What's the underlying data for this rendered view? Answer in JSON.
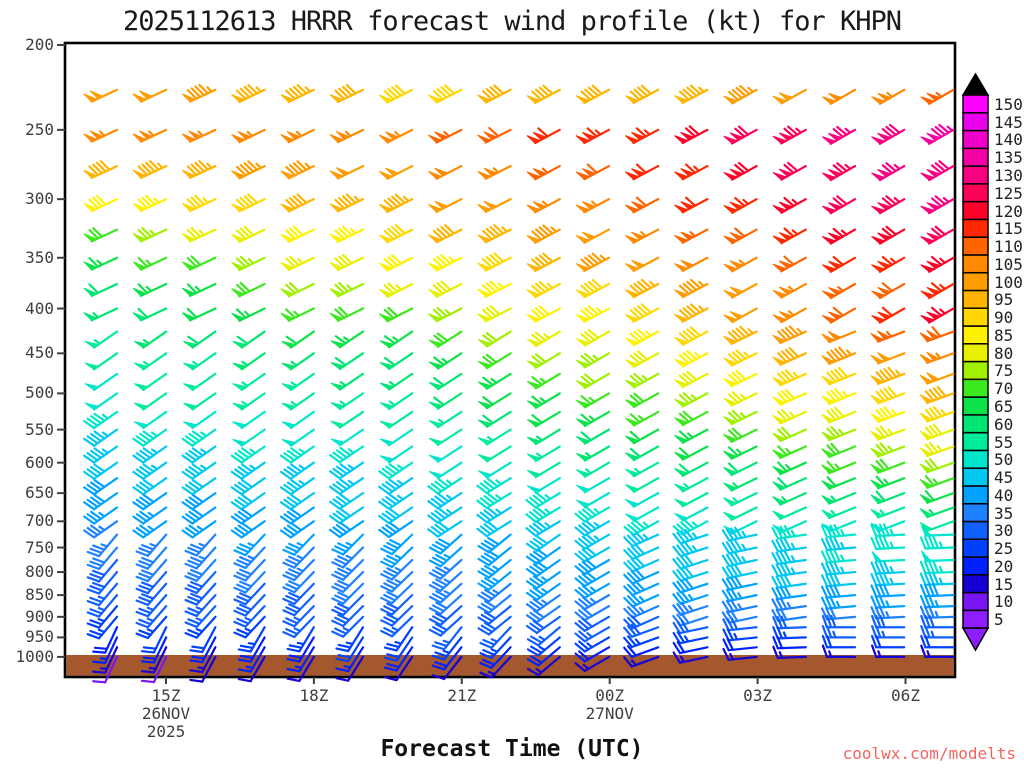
{
  "page": {
    "title": "2025112613 HRRR forecast wind profile (kt) for KHPN",
    "xlabel": "Forecast Time (UTC)",
    "watermark": "coolwx.com/modelts"
  },
  "chart_data": {
    "type": "wind-barb-profile",
    "title": "2025112613 HRRR forecast wind profile (kt) for KHPN",
    "xlabel": "Forecast Time (UTC)",
    "ylabel_units": "hPa",
    "units": "kt",
    "station": "KHPN",
    "model": "HRRR",
    "run": "2025112613",
    "y_axis_ticks": [
      200,
      250,
      300,
      350,
      400,
      450,
      500,
      550,
      600,
      650,
      700,
      750,
      800,
      850,
      900,
      950,
      1000
    ],
    "x_axis_ticks": [
      {
        "label": "15Z",
        "sub": [
          "26NOV",
          "2025"
        ]
      },
      {
        "label": "18Z",
        "sub": []
      },
      {
        "label": "21Z",
        "sub": []
      },
      {
        "label": "00Z",
        "sub": [
          "27NOV"
        ]
      },
      {
        "label": "03Z",
        "sub": []
      },
      {
        "label": "06Z",
        "sub": []
      }
    ],
    "times_utc": [
      "14Z",
      "15Z",
      "16Z",
      "17Z",
      "18Z",
      "19Z",
      "20Z",
      "21Z",
      "22Z",
      "23Z",
      "00Z",
      "01Z",
      "02Z",
      "03Z",
      "04Z",
      "05Z",
      "06Z",
      "07Z"
    ],
    "levels_hpa": [
      225,
      250,
      275,
      300,
      325,
      350,
      375,
      400,
      425,
      450,
      475,
      500,
      525,
      550,
      575,
      600,
      625,
      650,
      675,
      700,
      725,
      750,
      775,
      800,
      825,
      850,
      875,
      900,
      925,
      950,
      975,
      1000
    ],
    "speeds_kt": [
      [
        100,
        98,
        97,
        95,
        93,
        92,
        90,
        90,
        91,
        91,
        92,
        92,
        95,
        97,
        100,
        102,
        105,
        107
      ],
      [
        105,
        105,
        105,
        105,
        105,
        105,
        105,
        107,
        109,
        111,
        113,
        115,
        118,
        121,
        124,
        127,
        130,
        133
      ],
      [
        92,
        93,
        95,
        96,
        97,
        99,
        100,
        102,
        105,
        107,
        110,
        112,
        115,
        118,
        121,
        124,
        127,
        130
      ],
      [
        82,
        84,
        86,
        89,
        91,
        93,
        95,
        98,
        100,
        103,
        105,
        108,
        111,
        114,
        117,
        121,
        124,
        127
      ],
      [
        70,
        73,
        76,
        79,
        82,
        85,
        88,
        91,
        94,
        97,
        100,
        103,
        106,
        109,
        113,
        116,
        119,
        122
      ],
      [
        63,
        66,
        69,
        73,
        76,
        79,
        82,
        85,
        89,
        92,
        96,
        99,
        102,
        105,
        108,
        111,
        114,
        117
      ],
      [
        60,
        63,
        65,
        68,
        71,
        73,
        76,
        80,
        83,
        87,
        90,
        94,
        97,
        100,
        104,
        107,
        110,
        113
      ],
      [
        57,
        59,
        61,
        64,
        66,
        68,
        70,
        74,
        78,
        81,
        85,
        89,
        94,
        98,
        103,
        108,
        112,
        117
      ],
      [
        55,
        57,
        58,
        60,
        61,
        63,
        64,
        68,
        72,
        76,
        80,
        84,
        88,
        93,
        97,
        101,
        106,
        110
      ],
      [
        52,
        53,
        55,
        56,
        57,
        59,
        60,
        64,
        68,
        71,
        75,
        79,
        83,
        87,
        92,
        96,
        100,
        104
      ],
      [
        50,
        51,
        52,
        54,
        55,
        56,
        57,
        60,
        64,
        67,
        71,
        74,
        78,
        82,
        86,
        90,
        94,
        98
      ],
      [
        50,
        51,
        52,
        53,
        53,
        54,
        55,
        58,
        61,
        64,
        67,
        70,
        74,
        77,
        81,
        85,
        88,
        92
      ],
      [
        47,
        48,
        49,
        50,
        50,
        51,
        52,
        55,
        58,
        61,
        63,
        66,
        69,
        73,
        76,
        79,
        83,
        86
      ],
      [
        45,
        46,
        47,
        48,
        48,
        49,
        50,
        52,
        55,
        57,
        60,
        62,
        65,
        68,
        71,
        74,
        77,
        80
      ],
      [
        44,
        45,
        45,
        46,
        47,
        47,
        48,
        50,
        52,
        54,
        56,
        58,
        61,
        64,
        67,
        70,
        73,
        76
      ],
      [
        42,
        43,
        43,
        44,
        45,
        45,
        46,
        48,
        50,
        51,
        53,
        55,
        58,
        60,
        63,
        66,
        68,
        71
      ],
      [
        40,
        41,
        41,
        42,
        43,
        43,
        44,
        46,
        47,
        49,
        50,
        52,
        54,
        57,
        59,
        61,
        64,
        66
      ],
      [
        38,
        39,
        40,
        41,
        41,
        42,
        43,
        44,
        46,
        47,
        49,
        50,
        52,
        54,
        56,
        57,
        59,
        61
      ],
      [
        36,
        37,
        38,
        39,
        40,
        41,
        42,
        43,
        44,
        46,
        47,
        48,
        49,
        51,
        52,
        53,
        55,
        56
      ],
      [
        35,
        36,
        37,
        38,
        38,
        39,
        40,
        41,
        42,
        44,
        45,
        46,
        47,
        48,
        48,
        49,
        50,
        51
      ],
      [
        33,
        34,
        35,
        36,
        36,
        37,
        38,
        39,
        40,
        42,
        43,
        44,
        45,
        45,
        46,
        47,
        47,
        48
      ],
      [
        31,
        32,
        33,
        34,
        34,
        35,
        36,
        37,
        38,
        40,
        41,
        42,
        43,
        44,
        44,
        45,
        46,
        47
      ],
      [
        30,
        31,
        31,
        32,
        33,
        33,
        34,
        35,
        37,
        38,
        40,
        41,
        42,
        44,
        45,
        46,
        48,
        49
      ],
      [
        29,
        30,
        30,
        31,
        32,
        32,
        33,
        34,
        36,
        37,
        39,
        40,
        41,
        42,
        43,
        44,
        45,
        46
      ],
      [
        27,
        28,
        29,
        30,
        30,
        31,
        32,
        33,
        34,
        36,
        37,
        38,
        39,
        40,
        41,
        42,
        43,
        44
      ],
      [
        26,
        27,
        27,
        28,
        29,
        29,
        30,
        31,
        32,
        34,
        35,
        36,
        37,
        37,
        38,
        39,
        39,
        40
      ],
      [
        25,
        26,
        26,
        27,
        27,
        28,
        28,
        29,
        30,
        31,
        32,
        33,
        34,
        34,
        35,
        36,
        36,
        37
      ],
      [
        23,
        24,
        24,
        25,
        26,
        26,
        27,
        28,
        28,
        29,
        29,
        30,
        31,
        31,
        32,
        32,
        33,
        33
      ],
      [
        20,
        21,
        22,
        23,
        23,
        24,
        25,
        26,
        26,
        27,
        27,
        28,
        28,
        29,
        29,
        30,
        30,
        30
      ],
      [
        17,
        18,
        19,
        20,
        20,
        21,
        22,
        23,
        23,
        24,
        24,
        25,
        25,
        25,
        25,
        26,
        26,
        26
      ],
      [
        13,
        14,
        15,
        16,
        16,
        17,
        18,
        18,
        19,
        19,
        20,
        20,
        20,
        20,
        20,
        21,
        21,
        21
      ],
      [
        10,
        10,
        11,
        11,
        11,
        12,
        12,
        12,
        13,
        13,
        14,
        14,
        14,
        14,
        14,
        15,
        15,
        15
      ]
    ],
    "direction_bands": [
      {
        "min_level": 225,
        "max_level": 400,
        "values": [
          245,
          245,
          245,
          244,
          244,
          244,
          243,
          243,
          243,
          242,
          242,
          242,
          242,
          241,
          241,
          240,
          240,
          240
        ]
      },
      {
        "min_level": 425,
        "max_level": 700,
        "values": [
          235,
          235,
          235,
          235,
          235,
          236,
          236,
          237,
          238,
          239,
          240,
          241,
          242,
          244,
          246,
          248,
          249,
          250
        ]
      },
      {
        "min_level": 725,
        "max_level": 900,
        "values": [
          220,
          221,
          222,
          223,
          224,
          225,
          226,
          228,
          231,
          235,
          240,
          246,
          252,
          258,
          262,
          265,
          267,
          268
        ]
      },
      {
        "min_level": 925,
        "max_level": 1000,
        "values": [
          205,
          206,
          208,
          210,
          211,
          212,
          214,
          218,
          223,
          230,
          240,
          250,
          258,
          264,
          268,
          270,
          270,
          270
        ]
      }
    ],
    "colorbar": {
      "values": [
        5,
        10,
        15,
        20,
        25,
        30,
        35,
        40,
        45,
        50,
        55,
        60,
        65,
        70,
        75,
        80,
        85,
        90,
        95,
        100,
        105,
        110,
        115,
        120,
        125,
        130,
        135,
        140,
        145,
        150
      ],
      "colors": [
        "#8c1eff",
        "#7815f5",
        "#1500d6",
        "#0020ff",
        "#0040ff",
        "#1060ff",
        "#1e82ff",
        "#00a2ff",
        "#00c8f0",
        "#00e6cc",
        "#00eb9c",
        "#00e673",
        "#0ce24a",
        "#3ce81e",
        "#a0f000",
        "#e8f000",
        "#fff200",
        "#ffd800",
        "#ffb400",
        "#ff9c00",
        "#ff8a00",
        "#ff6400",
        "#ff2800",
        "#ff0028",
        "#ff0055",
        "#fa0080",
        "#f500a5",
        "#f000c8",
        "#eb00eb",
        "#ff00ff"
      ],
      "over_arrow_color": "#000000",
      "under_arrow_color": "#8c1eff"
    },
    "ground_color": "#a5572e",
    "grid": false,
    "legend_position": "right"
  }
}
